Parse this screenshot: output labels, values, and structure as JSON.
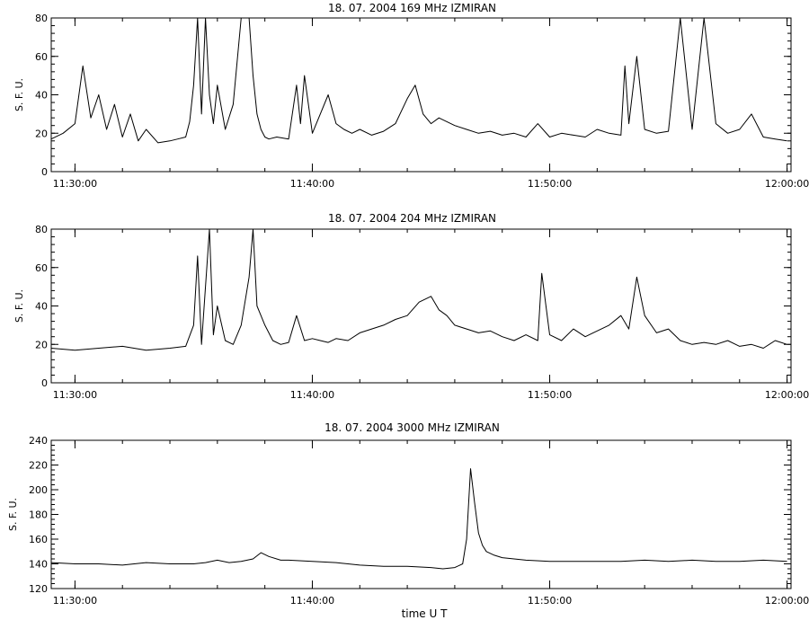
{
  "figure": {
    "xlabel": "time  U T",
    "stroke_color": "#000000",
    "background": "#ffffff"
  },
  "chart_data": [
    {
      "type": "line",
      "title": "18.  07.  2004    169 MHz    IZMIRAN",
      "ylabel": "S. F. U.",
      "xlabel": "",
      "xlim": [
        "11:29:00",
        "12:00:10"
      ],
      "ylim": [
        0,
        80
      ],
      "yticks": [
        0,
        20,
        40,
        60,
        80
      ],
      "xticks": [
        "11:30:00",
        "11:40:00",
        "11:50:00",
        "12:00:00"
      ],
      "grid": false,
      "series": [
        {
          "x": [
            "11:29:00",
            "11:29:30",
            "11:30:00",
            "11:30:20",
            "11:30:40",
            "11:31:00",
            "11:31:20",
            "11:31:40",
            "11:32:00",
            "11:32:20",
            "11:32:40",
            "11:33:00",
            "11:33:30",
            "11:34:00",
            "11:34:20",
            "11:34:40",
            "11:34:50",
            "11:35:00",
            "11:35:10",
            "11:35:20",
            "11:35:30",
            "11:35:40",
            "11:35:50",
            "11:36:00",
            "11:36:20",
            "11:36:40",
            "11:37:00",
            "11:37:20",
            "11:37:30",
            "11:37:40",
            "11:37:50",
            "11:38:00",
            "11:38:10",
            "11:38:30",
            "11:39:00",
            "11:39:20",
            "11:39:30",
            "11:39:40",
            "11:40:00",
            "11:40:20",
            "11:40:40",
            "11:41:00",
            "11:41:20",
            "11:41:40",
            "11:42:00",
            "11:42:30",
            "11:43:00",
            "11:43:30",
            "11:44:00",
            "11:44:20",
            "11:44:40",
            "11:45:00",
            "11:45:20",
            "11:45:40",
            "11:46:00",
            "11:46:30",
            "11:47:00",
            "11:47:30",
            "11:48:00",
            "11:48:30",
            "11:49:00",
            "11:49:30",
            "11:50:00",
            "11:50:30",
            "11:51:00",
            "11:51:30",
            "11:52:00",
            "11:52:30",
            "11:53:00",
            "11:53:10",
            "11:53:20",
            "11:53:40",
            "11:54:00",
            "11:54:30",
            "11:55:00",
            "11:55:30",
            "11:56:00",
            "11:56:30",
            "11:57:00",
            "11:57:30",
            "11:58:00",
            "11:58:30",
            "11:59:00",
            "11:59:30",
            "12:00:00"
          ],
          "y": [
            17,
            20,
            25,
            55,
            28,
            40,
            22,
            35,
            18,
            30,
            16,
            22,
            15,
            16,
            17,
            18,
            26,
            45,
            80,
            30,
            80,
            40,
            25,
            45,
            22,
            35,
            80,
            80,
            50,
            30,
            22,
            18,
            17,
            18,
            17,
            45,
            25,
            50,
            20,
            30,
            40,
            25,
            22,
            20,
            22,
            19,
            21,
            25,
            38,
            45,
            30,
            25,
            28,
            26,
            24,
            22,
            20,
            21,
            19,
            20,
            18,
            25,
            18,
            20,
            19,
            18,
            22,
            20,
            19,
            55,
            25,
            60,
            22,
            20,
            21,
            80,
            22,
            80,
            25,
            20,
            22,
            30,
            18,
            17,
            16
          ]
        }
      ]
    },
    {
      "type": "line",
      "title": "18.  07.  2004    204 MHz    IZMIRAN",
      "ylabel": "S. F. U.",
      "xlabel": "",
      "xlim": [
        "11:29:00",
        "12:00:10"
      ],
      "ylim": [
        0,
        80
      ],
      "yticks": [
        0,
        20,
        40,
        60,
        80
      ],
      "xticks": [
        "11:30:00",
        "11:40:00",
        "11:50:00",
        "12:00:00"
      ],
      "grid": false,
      "series": [
        {
          "x": [
            "11:29:00",
            "11:30:00",
            "11:31:00",
            "11:32:00",
            "11:33:00",
            "11:34:00",
            "11:34:40",
            "11:35:00",
            "11:35:10",
            "11:35:20",
            "11:35:40",
            "11:35:50",
            "11:36:00",
            "11:36:20",
            "11:36:40",
            "11:37:00",
            "11:37:20",
            "11:37:30",
            "11:37:40",
            "11:37:50",
            "11:38:00",
            "11:38:20",
            "11:38:40",
            "11:39:00",
            "11:39:20",
            "11:39:40",
            "11:40:00",
            "11:40:20",
            "11:40:40",
            "11:41:00",
            "11:41:30",
            "11:42:00",
            "11:42:30",
            "11:43:00",
            "11:43:30",
            "11:44:00",
            "11:44:30",
            "11:45:00",
            "11:45:20",
            "11:45:40",
            "11:46:00",
            "11:46:30",
            "11:47:00",
            "11:47:30",
            "11:48:00",
            "11:48:30",
            "11:49:00",
            "11:49:30",
            "11:49:40",
            "11:50:00",
            "11:50:30",
            "11:51:00",
            "11:51:30",
            "11:52:00",
            "11:52:30",
            "11:53:00",
            "11:53:20",
            "11:53:40",
            "11:54:00",
            "11:54:30",
            "11:55:00",
            "11:55:30",
            "11:56:00",
            "11:56:30",
            "11:57:00",
            "11:57:30",
            "11:58:00",
            "11:58:30",
            "11:59:00",
            "11:59:30",
            "12:00:00"
          ],
          "y": [
            18,
            17,
            18,
            19,
            17,
            18,
            19,
            30,
            66,
            20,
            80,
            25,
            40,
            22,
            20,
            30,
            55,
            80,
            40,
            35,
            30,
            22,
            20,
            21,
            35,
            22,
            23,
            22,
            21,
            23,
            22,
            26,
            28,
            30,
            33,
            35,
            42,
            45,
            38,
            35,
            30,
            28,
            26,
            27,
            24,
            22,
            25,
            22,
            57,
            25,
            22,
            28,
            24,
            27,
            30,
            35,
            28,
            55,
            35,
            26,
            28,
            22,
            20,
            21,
            20,
            22,
            19,
            20,
            18,
            22,
            20
          ]
        }
      ]
    },
    {
      "type": "line",
      "title": "18.  07.  2004    3000 MHz    IZMIRAN",
      "ylabel": "S. F. U.",
      "xlabel": "time  U T",
      "xlim": [
        "11:29:00",
        "12:00:10"
      ],
      "ylim": [
        120,
        240
      ],
      "yticks": [
        120,
        140,
        160,
        180,
        200,
        220,
        240
      ],
      "xticks": [
        "11:30:00",
        "11:40:00",
        "11:50:00",
        "12:00:00"
      ],
      "grid": false,
      "series": [
        {
          "x": [
            "11:29:00",
            "11:30:00",
            "11:31:00",
            "11:32:00",
            "11:33:00",
            "11:34:00",
            "11:35:00",
            "11:35:30",
            "11:36:00",
            "11:36:30",
            "11:37:00",
            "11:37:30",
            "11:37:50",
            "11:38:10",
            "11:38:40",
            "11:39:00",
            "11:40:00",
            "11:41:00",
            "11:42:00",
            "11:43:00",
            "11:44:00",
            "11:45:00",
            "11:45:30",
            "11:46:00",
            "11:46:20",
            "11:46:30",
            "11:46:40",
            "11:46:50",
            "11:47:00",
            "11:47:10",
            "11:47:20",
            "11:47:40",
            "11:48:00",
            "11:48:30",
            "11:49:00",
            "11:50:00",
            "11:51:00",
            "11:52:00",
            "11:53:00",
            "11:54:00",
            "11:55:00",
            "11:56:00",
            "11:57:00",
            "11:58:00",
            "11:59:00",
            "12:00:00"
          ],
          "y": [
            141,
            140,
            140,
            139,
            141,
            140,
            140,
            141,
            143,
            141,
            142,
            144,
            149,
            146,
            143,
            143,
            142,
            141,
            139,
            138,
            138,
            137,
            136,
            137,
            140,
            160,
            217,
            190,
            165,
            155,
            150,
            147,
            145,
            144,
            143,
            142,
            142,
            142,
            142,
            143,
            142,
            143,
            142,
            142,
            143,
            142
          ]
        }
      ]
    }
  ]
}
